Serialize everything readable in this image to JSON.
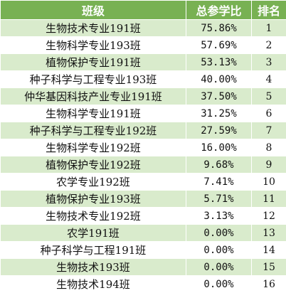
{
  "table": {
    "headers": [
      "班级",
      "总参学比",
      "排名"
    ],
    "rows": [
      [
        "生物技术专业191班",
        "75.86%",
        "1"
      ],
      [
        "生物科学专业193班",
        "57.69%",
        "2"
      ],
      [
        "植物保护专业191班",
        "53.13%",
        "3"
      ],
      [
        "种子科学与工程专业193班",
        "40.00%",
        "4"
      ],
      [
        "仲华基因科技产业专业191班",
        "37.50%",
        "5"
      ],
      [
        "生物科学专业191班",
        "31.25%",
        "6"
      ],
      [
        "种子科学与工程专业192班",
        "27.59%",
        "7"
      ],
      [
        "生物科学专业192班",
        "16.00%",
        "8"
      ],
      [
        "植物保护专业192班",
        "9.68%",
        "9"
      ],
      [
        "农学专业192班",
        "7.41%",
        "10"
      ],
      [
        "植物保护专业193班",
        "5.71%",
        "11"
      ],
      [
        "生物技术专业192班",
        "3.13%",
        "12"
      ],
      [
        "农学191班",
        "0.00%",
        "13"
      ],
      [
        "种子科学与工程191班",
        "0.00%",
        "14"
      ],
      [
        "生物技术193班",
        "0.00%",
        "15"
      ],
      [
        "生物技术194班",
        "0.00%",
        "16"
      ]
    ]
  },
  "colors": {
    "header_bg": "#78b153",
    "band_bg": "#d9ebcc"
  }
}
